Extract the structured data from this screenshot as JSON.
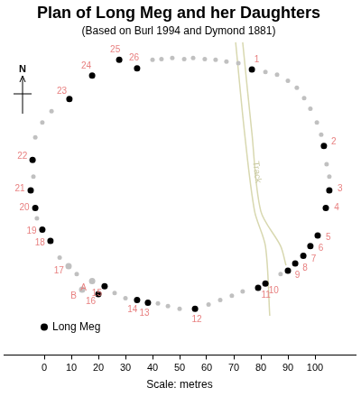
{
  "chart_data": {
    "type": "scatter",
    "title": "Plan of Long Meg and her Daughters",
    "subtitle": "(Based on Burl 1994 and Dymond 1881)",
    "north_label": "N",
    "xlabel": "Scale: metres",
    "xlim": [
      -15,
      115
    ],
    "xticks": [
      0,
      10,
      20,
      30,
      40,
      50,
      60,
      70,
      80,
      90,
      100
    ],
    "ylim": [
      0,
      120
    ],
    "tick_labels": "x",
    "grid": false,
    "series": [
      {
        "type": "scatter",
        "marker": "circle",
        "labels": [
          "1",
          "2",
          "3",
          "4",
          "5",
          "6",
          "7",
          "8",
          "9",
          "10",
          "11",
          "12",
          "13",
          "14",
          "15",
          "16",
          "17",
          "18",
          "19",
          "20",
          "21",
          "22",
          "23",
          "24",
          "25",
          "26",
          "A",
          "B"
        ],
        "x": [
          76.7,
          103.3,
          105.3,
          104,
          101,
          98.3,
          95.7,
          92.7,
          90,
          81.7,
          79,
          55.7,
          38.3,
          34.3,
          22.3,
          20,
          9,
          2.3,
          -0.7,
          -3.3,
          -5,
          -4.3,
          9.3,
          17.7,
          27.7,
          34.3,
          17.7,
          14
        ],
        "y": [
          109.3,
          80,
          63,
          56.3,
          45.7,
          41.7,
          38,
          35,
          32.3,
          27.3,
          25.7,
          17.7,
          20,
          21,
          26.3,
          23.3,
          34,
          43.7,
          48,
          56.3,
          63,
          74.7,
          98,
          107,
          113,
          109.7,
          28.3,
          25
        ],
        "colors": [
          "#000000",
          "#000000",
          "#000000",
          "#000000",
          "#000000",
          "#000000",
          "#000000",
          "#000000",
          "#000000",
          "#000000",
          "#000000",
          "#000000",
          "#000000",
          "#000000",
          "#000000",
          "#000000",
          "#c0c0c0",
          "#000000",
          "#000000",
          "#000000",
          "#000000",
          "#000000",
          "#000000",
          "#000000",
          "#000000",
          "#000000",
          "#c0c0c0",
          "#c0c0c0"
        ],
        "label_color": "#e88080"
      },
      {
        "type": "scatter",
        "marker": "circle",
        "color": "#c0c0c0",
        "x": [
          40,
          43.3,
          47.3,
          51.7,
          55,
          59.3,
          63.3,
          67.3,
          71.7,
          81.7,
          86,
          90,
          93.3,
          96,
          98.3,
          100.7,
          102.3,
          104.3,
          105.3,
          87.3,
          73.3,
          69.3,
          65,
          60.7,
          50,
          45.7,
          42,
          30,
          26,
          12,
          5.7,
          -2.7,
          -4,
          -3.3,
          -0.7,
          2.7
        ],
        "y": [
          113,
          113.3,
          113.7,
          113.3,
          113.7,
          113.3,
          113,
          112.3,
          111.7,
          108.3,
          107.3,
          105,
          102.3,
          98.3,
          94.3,
          89,
          84.3,
          73,
          68.3,
          31,
          24.3,
          22.7,
          21,
          19.3,
          17.7,
          18.7,
          19.7,
          21.7,
          23.7,
          31,
          37.3,
          52.3,
          68.3,
          83.3,
          89,
          93.3
        ]
      },
      {
        "type": "scatter",
        "marker": "circle",
        "name": "Long Meg",
        "color": "#000000",
        "x": [
          0
        ],
        "y": [
          10.7
        ]
      },
      {
        "type": "line",
        "name": "Track",
        "color": "#d8d8b0",
        "x": [
          70.7,
          74,
          77.7,
          81.7,
          83.3
        ],
        "y": [
          119.7,
          85,
          55,
          41.7,
          15
        ]
      },
      {
        "type": "line",
        "color": "#d8d8b0",
        "x": [
          73.3,
          76.7,
          80,
          87.3,
          89.3
        ],
        "y": [
          119.7,
          85,
          55,
          41.7,
          34.3
        ]
      }
    ]
  }
}
